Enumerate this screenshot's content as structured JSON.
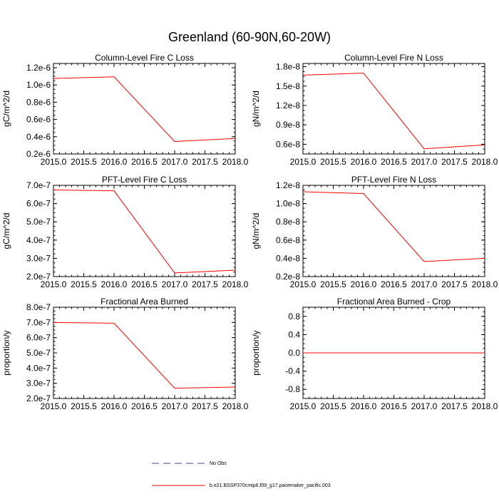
{
  "figure": {
    "title": "Greenland (60-90N,60-20W)"
  },
  "legend": [
    {
      "label": "No Obs",
      "color": "#4b3c8c",
      "dashed": true
    },
    {
      "label": "b.e21.BSSP370cmip6.f09_g17.pacemaker_pacific.003",
      "color": "#ff0000",
      "dashed": false
    }
  ],
  "chart_data": [
    {
      "type": "line",
      "title": "Column-Level Fire C Loss",
      "ylabel": "gC/m^2/d",
      "x": [
        2015,
        2016,
        2017,
        2018
      ],
      "xlim": [
        2015,
        2018
      ],
      "xticks": [
        "2015.0",
        "2015.5",
        "2016.0",
        "2016.5",
        "2017.0",
        "2017.5",
        "2018.0"
      ],
      "ylim": [
        2e-07,
        1.25e-06
      ],
      "yticks": [
        {
          "v": 2e-07,
          "label": "0.2e-6"
        },
        {
          "v": 4e-07,
          "label": "0.4e-6"
        },
        {
          "v": 6e-07,
          "label": "0.6e-6"
        },
        {
          "v": 8e-07,
          "label": "0.8e-6"
        },
        {
          "v": 1e-06,
          "label": "1.0e-6"
        },
        {
          "v": 1.2e-06,
          "label": "1.2e-6"
        }
      ],
      "series": [
        {
          "color": "#ff0000",
          "values": [
            1.075e-06,
            1.095e-06,
            3.45e-07,
            3.8e-07
          ]
        }
      ]
    },
    {
      "type": "line",
      "title": "Column-Level Fire N Loss",
      "ylabel": "gN/m^2/d",
      "x": [
        2015,
        2016,
        2017,
        2018
      ],
      "xlim": [
        2015,
        2018
      ],
      "xticks": [
        "2015.0",
        "2015.5",
        "2016.0",
        "2016.5",
        "2017.0",
        "2017.5",
        "2018.0"
      ],
      "ylim": [
        4.5e-09,
        1.85e-08
      ],
      "yticks": [
        {
          "v": 6e-09,
          "label": "0.6e-8"
        },
        {
          "v": 9e-09,
          "label": "0.9e-8"
        },
        {
          "v": 1.2e-08,
          "label": "1.2e-8"
        },
        {
          "v": 1.5e-08,
          "label": "1.5e-8"
        },
        {
          "v": 1.8e-08,
          "label": "1.8e-8"
        }
      ],
      "series": [
        {
          "color": "#ff0000",
          "values": [
            1.67e-08,
            1.7e-08,
            5.3e-09,
            5.9e-09
          ]
        }
      ]
    },
    {
      "type": "line",
      "title": "PFT-Level Fire C Loss",
      "ylabel": "gC/m^2/d",
      "x": [
        2015,
        2016,
        2017,
        2018
      ],
      "xlim": [
        2015,
        2018
      ],
      "xticks": [
        "2015.0",
        "2015.5",
        "2016.0",
        "2016.5",
        "2017.0",
        "2017.5",
        "2018.0"
      ],
      "ylim": [
        2e-07,
        7e-07
      ],
      "yticks": [
        {
          "v": 2e-07,
          "label": "2.0e-7"
        },
        {
          "v": 3e-07,
          "label": "3.0e-7"
        },
        {
          "v": 4e-07,
          "label": "4.0e-7"
        },
        {
          "v": 5e-07,
          "label": "5.0e-7"
        },
        {
          "v": 6e-07,
          "label": "6.0e-7"
        },
        {
          "v": 7e-07,
          "label": "7.0e-7"
        }
      ],
      "series": [
        {
          "color": "#ff0000",
          "values": [
            6.75e-07,
            6.7e-07,
            2.2e-07,
            2.35e-07
          ]
        }
      ]
    },
    {
      "type": "line",
      "title": "PFT-Level Fire N Loss",
      "ylabel": "gN/m^2/d",
      "x": [
        2015,
        2016,
        2017,
        2018
      ],
      "xlim": [
        2015,
        2018
      ],
      "xticks": [
        "2015.0",
        "2015.5",
        "2016.0",
        "2016.5",
        "2017.0",
        "2017.5",
        "2018.0"
      ],
      "ylim": [
        2e-09,
        1.2e-08
      ],
      "yticks": [
        {
          "v": 2e-09,
          "label": "0.2e-8"
        },
        {
          "v": 4e-09,
          "label": "0.4e-8"
        },
        {
          "v": 6e-09,
          "label": "0.6e-8"
        },
        {
          "v": 8e-09,
          "label": "0.8e-8"
        },
        {
          "v": 1e-08,
          "label": "1.0e-8"
        },
        {
          "v": 1.2e-08,
          "label": "1.2e-8"
        }
      ],
      "series": [
        {
          "color": "#ff0000",
          "values": [
            1.13e-08,
            1.11e-08,
            3.65e-09,
            4e-09
          ]
        }
      ]
    },
    {
      "type": "line",
      "title": "Fractional Area Burned",
      "ylabel": "proportion/y",
      "x": [
        2015,
        2016,
        2017,
        2018
      ],
      "xlim": [
        2015,
        2018
      ],
      "xticks": [
        "2015.0",
        "2015.5",
        "2016.0",
        "2016.5",
        "2017.0",
        "2017.5",
        "2018.0"
      ],
      "ylim": [
        2e-07,
        8e-07
      ],
      "yticks": [
        {
          "v": 2e-07,
          "label": "2.0e-7"
        },
        {
          "v": 3e-07,
          "label": "3.0e-7"
        },
        {
          "v": 4e-07,
          "label": "4.0e-7"
        },
        {
          "v": 5e-07,
          "label": "5.0e-7"
        },
        {
          "v": 6e-07,
          "label": "6.0e-7"
        },
        {
          "v": 7e-07,
          "label": "7.0e-7"
        },
        {
          "v": 8e-07,
          "label": "8.0e-7"
        }
      ],
      "series": [
        {
          "color": "#ff0000",
          "values": [
            7e-07,
            6.95e-07,
            2.68e-07,
            2.75e-07
          ]
        }
      ]
    },
    {
      "type": "line",
      "title": "Fractional Area Burned - Crop",
      "ylabel": "proportion/y",
      "x": [
        2015,
        2016,
        2017,
        2018
      ],
      "xlim": [
        2015,
        2018
      ],
      "xticks": [
        "2015.0",
        "2015.5",
        "2016.0",
        "2016.5",
        "2017.0",
        "2017.5",
        "2018.0"
      ],
      "ylim": [
        -1.0,
        1.0
      ],
      "yticks": [
        {
          "v": -0.8,
          "label": "-0.8"
        },
        {
          "v": -0.4,
          "label": "-0.4"
        },
        {
          "v": 0.0,
          "label": "0.0"
        },
        {
          "v": 0.4,
          "label": "0.4"
        },
        {
          "v": 0.8,
          "label": "0.8"
        }
      ],
      "series": [
        {
          "color": "#ff0000",
          "values": [
            0,
            0,
            0,
            0
          ]
        }
      ]
    }
  ]
}
